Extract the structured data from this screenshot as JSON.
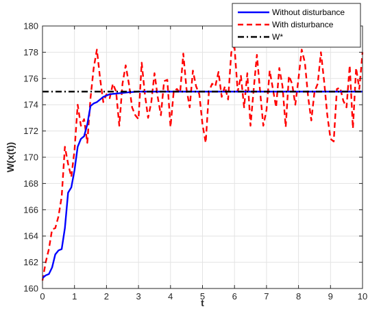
{
  "chart_data": {
    "type": "line",
    "xlabel": "t",
    "ylabel": "W(x(t))",
    "xlim": [
      0,
      10
    ],
    "ylim": [
      160,
      180
    ],
    "x_ticks": [
      0,
      1,
      2,
      3,
      4,
      5,
      6,
      7,
      8,
      9,
      10
    ],
    "y_ticks": [
      160,
      162,
      164,
      166,
      168,
      170,
      172,
      174,
      176,
      178,
      180
    ],
    "grid": true,
    "legend_position": "top-right",
    "series": [
      {
        "name": "Without disturbance",
        "color": "#0000ff",
        "style": "solid",
        "x": [
          0,
          0.1,
          0.2,
          0.3,
          0.4,
          0.5,
          0.6,
          0.7,
          0.8,
          0.9,
          1.0,
          1.1,
          1.2,
          1.3,
          1.4,
          1.5,
          1.6,
          1.7,
          1.8,
          1.9,
          2.0,
          2.1,
          2.3,
          2.5,
          2.7,
          3.0,
          3.5,
          4.0,
          5.0,
          6.0,
          7.0,
          8.0,
          9.0,
          10.0
        ],
        "y": [
          160.8,
          161.0,
          161.1,
          161.6,
          162.6,
          162.9,
          163.0,
          164.6,
          167.3,
          167.7,
          169.0,
          170.8,
          171.4,
          171.6,
          172.5,
          173.9,
          174.1,
          174.2,
          174.4,
          174.6,
          174.7,
          174.8,
          174.85,
          174.9,
          174.95,
          175.0,
          175.0,
          175.0,
          175.0,
          175.0,
          175.0,
          175.0,
          175.0,
          175.0
        ]
      },
      {
        "name": "With disturbance",
        "color": "#ff0000",
        "style": "dashed",
        "x": [
          0,
          0.1,
          0.2,
          0.3,
          0.4,
          0.5,
          0.6,
          0.7,
          0.8,
          0.9,
          1.0,
          1.1,
          1.2,
          1.3,
          1.4,
          1.5,
          1.6,
          1.7,
          1.8,
          1.9,
          2.0,
          2.1,
          2.2,
          2.3,
          2.4,
          2.5,
          2.6,
          2.7,
          2.8,
          2.9,
          3.0,
          3.1,
          3.2,
          3.3,
          3.4,
          3.5,
          3.6,
          3.7,
          3.8,
          3.9,
          4.0,
          4.1,
          4.2,
          4.3,
          4.4,
          4.5,
          4.6,
          4.7,
          4.8,
          4.9,
          5.0,
          5.1,
          5.2,
          5.3,
          5.4,
          5.5,
          5.6,
          5.7,
          5.8,
          5.9,
          6.0,
          6.1,
          6.2,
          6.3,
          6.4,
          6.5,
          6.6,
          6.7,
          6.8,
          6.9,
          7.0,
          7.1,
          7.2,
          7.3,
          7.4,
          7.5,
          7.6,
          7.7,
          7.8,
          7.9,
          8.0,
          8.1,
          8.2,
          8.3,
          8.4,
          8.5,
          8.6,
          8.7,
          8.8,
          8.9,
          9.0,
          9.1,
          9.2,
          9.3,
          9.4,
          9.5,
          9.6,
          9.7,
          9.8,
          9.9,
          10.0
        ],
        "y": [
          160.6,
          162.0,
          163.0,
          164.5,
          164.6,
          165.5,
          167.0,
          170.8,
          169.5,
          168.5,
          170.5,
          174.0,
          172.4,
          172.9,
          171.1,
          174.5,
          176.8,
          178.2,
          176.0,
          174.2,
          174.8,
          174.5,
          175.6,
          175.0,
          172.4,
          175.6,
          177.0,
          175.6,
          173.8,
          173.2,
          172.9,
          177.2,
          174.8,
          173.0,
          174.2,
          176.4,
          174.6,
          173.2,
          175.8,
          175.9,
          172.3,
          175.0,
          175.2,
          174.9,
          177.9,
          175.2,
          173.8,
          176.6,
          175.4,
          174.8,
          172.5,
          171.1,
          175.0,
          175.6,
          175.4,
          176.5,
          174.6,
          175.4,
          174.4,
          178.0,
          178.4,
          175.0,
          176.2,
          173.8,
          176.4,
          172.4,
          175.2,
          177.8,
          175.0,
          172.4,
          173.6,
          176.6,
          175.2,
          173.8,
          176.8,
          175.4,
          172.3,
          176.2,
          175.6,
          174.0,
          176.0,
          178.2,
          177.2,
          174.6,
          172.8,
          175.0,
          175.6,
          178.0,
          175.8,
          173.2,
          171.4,
          171.2,
          175.2,
          175.3,
          174.3,
          173.8,
          177.0,
          172.2,
          176.8,
          175.2,
          178.0
        ]
      },
      {
        "name": "W*",
        "color": "#000000",
        "style": "dashdot",
        "x": [
          0,
          10
        ],
        "y": [
          175.0,
          175.0
        ]
      }
    ]
  }
}
